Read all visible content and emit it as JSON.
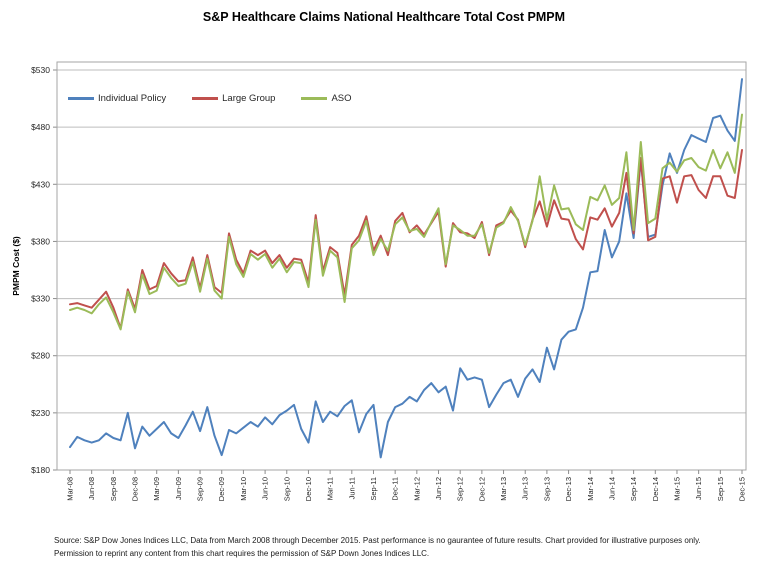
{
  "chart_data": {
    "type": "line",
    "title": "S&P Healthcare Claims National Healthcare Total Cost PMPM",
    "ylabel": "PMPM Cost ($)",
    "ylim": [
      180,
      530
    ],
    "ytick_step": 50,
    "ytick_labels": [
      "$180",
      "$230",
      "$280",
      "$330",
      "$380",
      "$430",
      "$480",
      "$530"
    ],
    "grid": true,
    "legend_position": "top-left-inside",
    "x_frequency": "monthly",
    "x_start": "Mar-08",
    "x_end": "Dec-15",
    "x_tick_labels": [
      "Mar-08",
      "Jun-08",
      "Sep-08",
      "Dec-08",
      "Mar-09",
      "Jun-09",
      "Sep-09",
      "Dec-09",
      "Mar-10",
      "Jun-10",
      "Sep-10",
      "Dec-10",
      "Mar-11",
      "Jun-11",
      "Sep-11",
      "Dec-11",
      "Mar-12",
      "Jun-12",
      "Sep-12",
      "Dec-12",
      "Mar-13",
      "Jun-13",
      "Sep-13",
      "Dec-13",
      "Mar-14",
      "Jun-14",
      "Sep-14",
      "Dec-14",
      "Mar-15",
      "Jun-15",
      "Sep-15",
      "Dec-15"
    ],
    "series": [
      {
        "name": "Individual Policy",
        "color": "#4F81BD",
        "values": [
          200,
          209,
          206,
          204,
          206,
          212,
          208,
          206,
          230,
          199,
          218,
          210,
          216,
          222,
          212,
          208,
          219,
          231,
          214,
          235,
          210,
          193,
          215,
          212,
          217,
          222,
          218,
          226,
          220,
          228,
          232,
          237,
          216,
          204,
          240,
          222,
          231,
          227,
          236,
          241,
          213,
          229,
          237,
          191,
          222,
          235,
          238,
          244,
          240,
          250,
          256,
          248,
          253,
          232,
          269,
          259,
          261,
          259,
          235,
          246,
          256,
          259,
          244,
          260,
          268,
          257,
          287,
          268,
          294,
          301,
          303,
          322,
          353,
          354,
          390,
          366,
          380,
          422,
          383,
          451,
          384,
          386,
          429,
          457,
          440,
          460,
          473,
          470,
          467,
          488,
          490,
          477,
          468,
          522
        ]
      },
      {
        "name": "Large Group",
        "color": "#C0504D",
        "values": [
          325,
          326,
          324,
          322,
          329,
          336,
          322,
          304,
          338,
          321,
          355,
          338,
          341,
          361,
          352,
          345,
          346,
          366,
          339,
          368,
          340,
          335,
          387,
          364,
          352,
          372,
          368,
          372,
          361,
          368,
          357,
          365,
          364,
          344,
          403,
          354,
          375,
          370,
          333,
          377,
          385,
          402,
          372,
          385,
          368,
          398,
          405,
          388,
          394,
          386,
          396,
          406,
          358,
          396,
          388,
          387,
          383,
          397,
          368,
          394,
          397,
          407,
          399,
          375,
          399,
          415,
          393,
          416,
          400,
          399,
          382,
          373,
          401,
          399,
          409,
          393,
          405,
          440,
          387,
          453,
          381,
          384,
          435,
          437,
          414,
          437,
          438,
          425,
          418,
          437,
          437,
          420,
          418,
          460
        ]
      },
      {
        "name": "ASO",
        "color": "#9BBB59",
        "values": [
          320,
          322,
          320,
          317,
          325,
          331,
          318,
          303,
          336,
          318,
          351,
          334,
          337,
          357,
          348,
          341,
          343,
          362,
          336,
          365,
          337,
          330,
          384,
          360,
          349,
          369,
          364,
          369,
          357,
          365,
          353,
          362,
          361,
          340,
          399,
          350,
          372,
          366,
          327,
          374,
          381,
          398,
          368,
          382,
          372,
          395,
          401,
          389,
          391,
          384,
          397,
          409,
          360,
          394,
          390,
          385,
          385,
          395,
          370,
          392,
          396,
          410,
          398,
          377,
          398,
          437,
          399,
          429,
          408,
          409,
          395,
          390,
          419,
          416,
          429,
          412,
          418,
          458,
          390,
          467,
          396,
          400,
          444,
          449,
          441,
          451,
          453,
          445,
          442,
          460,
          444,
          458,
          440,
          491
        ]
      }
    ]
  },
  "footer": {
    "line1": "Source: S&P Dow Jones Indices LLC, Data from March 2008 through December 2015. Past performance is no gaurantee of future results. Chart provided for illustrative purposes only.",
    "line2": "Permission to reprint  any content from this chart requires the permission of S&P Down Jones Indices LLC."
  }
}
